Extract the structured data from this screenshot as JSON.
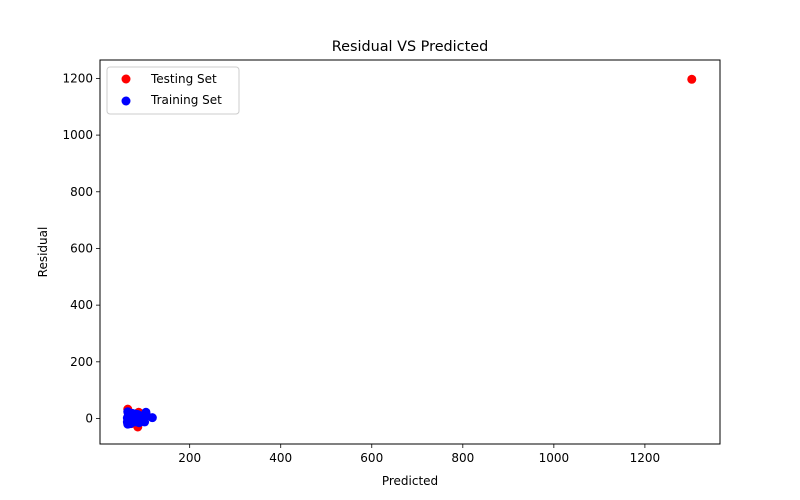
{
  "chart_data": {
    "type": "scatter",
    "title": "Residual VS Predicted",
    "xlabel": "Predicted",
    "ylabel": "Residual",
    "xlim": [
      3,
      1365
    ],
    "ylim": [
      -90,
      1265
    ],
    "xticks": [
      200,
      400,
      600,
      800,
      1000,
      1200
    ],
    "yticks": [
      0,
      200,
      400,
      600,
      800,
      1000,
      1200
    ],
    "grid": false,
    "legend_position": "top-left",
    "series": [
      {
        "name": "Testing Set",
        "color": "#ff0000",
        "points": [
          [
            64,
            33
          ],
          [
            65,
            20
          ],
          [
            66,
            8
          ],
          [
            67,
            -5
          ],
          [
            68,
            -12
          ],
          [
            70,
            15
          ],
          [
            72,
            -18
          ],
          [
            74,
            5
          ],
          [
            78,
            -8
          ],
          [
            80,
            10
          ],
          [
            84,
            -20
          ],
          [
            86,
            -30
          ],
          [
            88,
            22
          ],
          [
            90,
            -4
          ],
          [
            95,
            12
          ],
          [
            1303,
            1197
          ]
        ]
      },
      {
        "name": "Training Set",
        "color": "#0000ff",
        "points": [
          [
            63,
            2
          ],
          [
            63,
            -12
          ],
          [
            64,
            24
          ],
          [
            64,
            -20
          ],
          [
            65,
            10
          ],
          [
            65,
            -6
          ],
          [
            66,
            16
          ],
          [
            66,
            -15
          ],
          [
            67,
            4
          ],
          [
            68,
            20
          ],
          [
            68,
            -10
          ],
          [
            69,
            -2
          ],
          [
            70,
            8
          ],
          [
            70,
            -18
          ],
          [
            71,
            13
          ],
          [
            72,
            -6
          ],
          [
            73,
            2
          ],
          [
            74,
            18
          ],
          [
            74,
            -14
          ],
          [
            75,
            6
          ],
          [
            76,
            -4
          ],
          [
            77,
            11
          ],
          [
            78,
            -10
          ],
          [
            79,
            3
          ],
          [
            80,
            16
          ],
          [
            81,
            -7
          ],
          [
            82,
            5
          ],
          [
            83,
            -12
          ],
          [
            84,
            9
          ],
          [
            85,
            0
          ],
          [
            86,
            14
          ],
          [
            87,
            -5
          ],
          [
            88,
            4
          ],
          [
            89,
            -15
          ],
          [
            90,
            10
          ],
          [
            92,
            -8
          ],
          [
            93,
            3
          ],
          [
            95,
            7
          ],
          [
            97,
            -4
          ],
          [
            99,
            6
          ],
          [
            101,
            -12
          ],
          [
            104,
            22
          ],
          [
            106,
            9
          ],
          [
            118,
            3
          ]
        ]
      }
    ]
  }
}
